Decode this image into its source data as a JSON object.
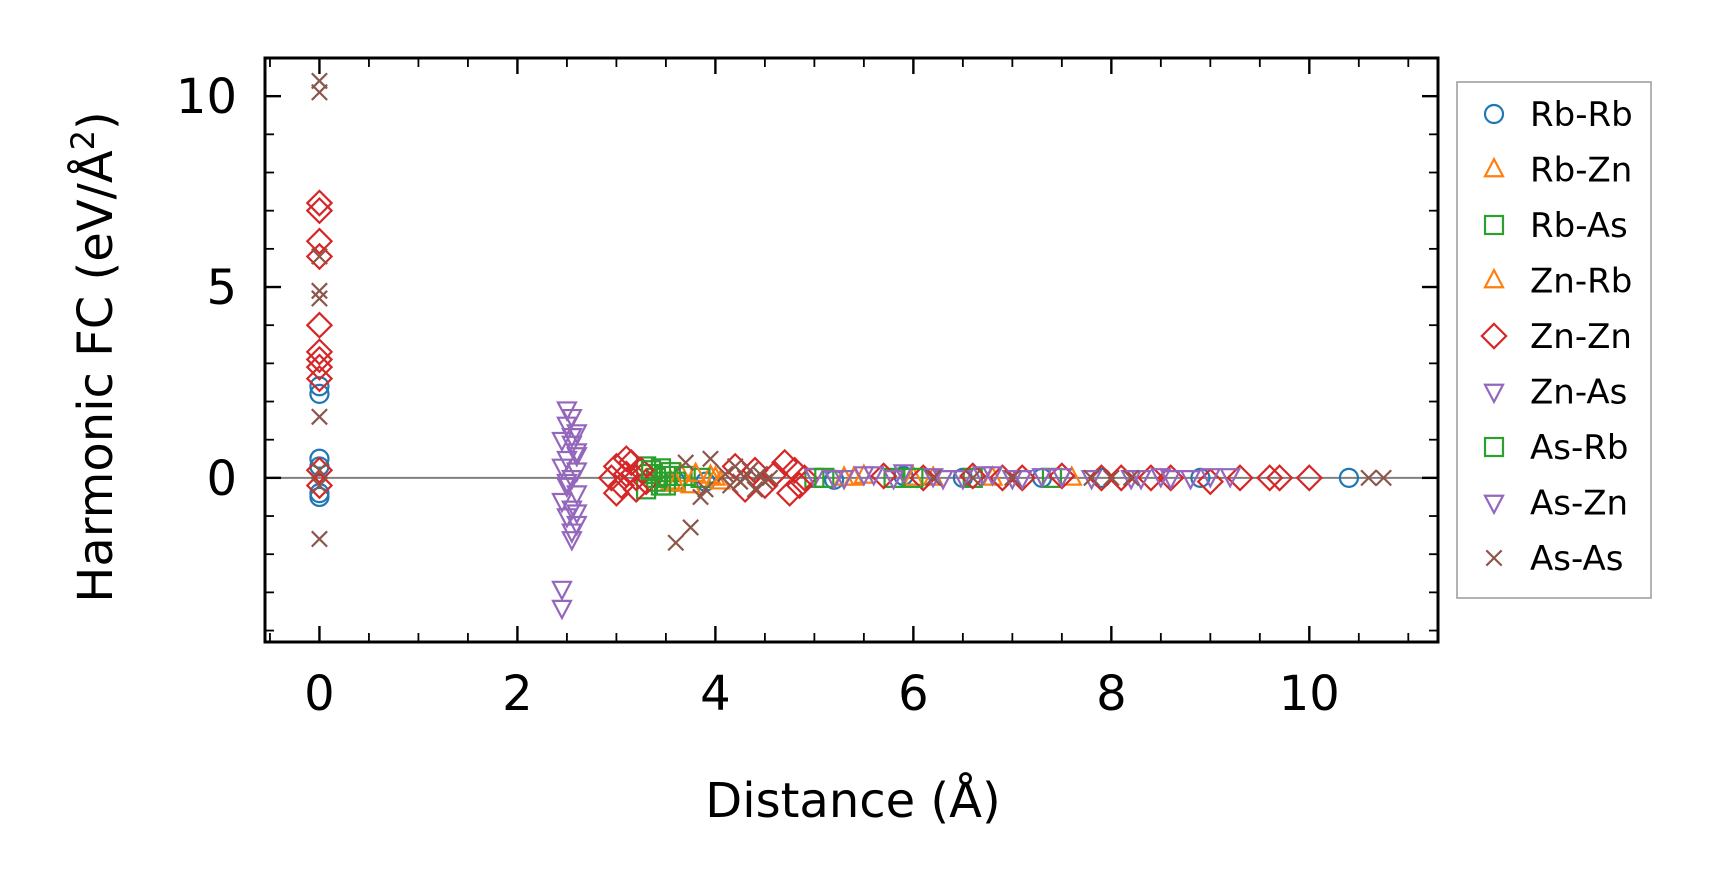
{
  "chart_data": {
    "type": "scatter",
    "xlabel": "Distance (Å)",
    "ylabel": "Harmonic FC (eV/Å²)",
    "ylabel_main": "Harmonic FC (eV/Å",
    "ylabel_sup": "2",
    "ylabel_close": ")",
    "xlim": [
      -0.55,
      11.3
    ],
    "ylim": [
      -4.3,
      11.0
    ],
    "xticks": [
      0,
      2,
      4,
      6,
      8,
      10
    ],
    "yticks": [
      0,
      5,
      10
    ],
    "xtick_labels": [
      "0",
      "2",
      "4",
      "6",
      "8",
      "10"
    ],
    "ytick_labels": [
      "0",
      "5",
      "10"
    ],
    "x_minor_step": 0.5,
    "y_minor_step": 1,
    "zero_line": true,
    "grid": false,
    "legend_position": "right outside",
    "series": [
      {
        "name": "Rb-Rb",
        "marker": "circle",
        "color": "#1f77b4",
        "points": [
          [
            0,
            2.4
          ],
          [
            0,
            2.2
          ],
          [
            0,
            0.5
          ],
          [
            0,
            0.3
          ],
          [
            0,
            -0.4
          ],
          [
            0,
            -0.5
          ],
          [
            3.6,
            -0.1
          ],
          [
            3.9,
            -0.1
          ],
          [
            5.2,
            -0.05
          ],
          [
            5.9,
            0.05
          ],
          [
            6.5,
            0.0
          ],
          [
            7.3,
            0.0
          ],
          [
            7.9,
            0.0
          ],
          [
            8.9,
            0.0
          ],
          [
            10.4,
            0.0
          ]
        ]
      },
      {
        "name": "Rb-Zn",
        "marker": "triangle-up",
        "color": "#ff7f0e",
        "points": [
          [
            3.55,
            -0.1
          ],
          [
            3.65,
            0.1
          ],
          [
            3.75,
            -0.2
          ],
          [
            3.95,
            0.05
          ],
          [
            4.05,
            -0.1
          ],
          [
            5.3,
            0.0
          ],
          [
            5.5,
            0.05
          ],
          [
            6.0,
            0.0
          ],
          [
            6.8,
            0.0
          ],
          [
            7.6,
            0.0
          ]
        ]
      },
      {
        "name": "Rb-As",
        "marker": "square",
        "color": "#2ca02c",
        "points": [
          [
            3.3,
            0.3
          ],
          [
            3.35,
            0.1
          ],
          [
            3.4,
            -0.1
          ],
          [
            3.45,
            0.25
          ],
          [
            3.3,
            -0.3
          ],
          [
            3.5,
            -0.2
          ],
          [
            3.4,
            0.0
          ],
          [
            3.55,
            0.15
          ],
          [
            3.6,
            -0.1
          ],
          [
            3.7,
            0.05
          ],
          [
            3.85,
            0.0
          ],
          [
            5.0,
            0.0
          ],
          [
            5.8,
            0.0
          ],
          [
            6.6,
            0.0
          ],
          [
            7.4,
            0.0
          ]
        ]
      },
      {
        "name": "Zn-Rb",
        "marker": "triangle-up",
        "color": "#ff7f0e",
        "points": [
          [
            3.6,
            -0.15
          ],
          [
            3.8,
            0.1
          ],
          [
            4.0,
            0.0
          ],
          [
            5.4,
            0.0
          ],
          [
            6.2,
            0.0
          ]
        ]
      },
      {
        "name": "Zn-Zn",
        "marker": "diamond",
        "color": "#d62728",
        "points": [
          [
            0,
            7.2
          ],
          [
            0,
            7.0
          ],
          [
            0,
            6.2
          ],
          [
            0,
            5.8
          ],
          [
            0,
            4.0
          ],
          [
            0,
            3.3
          ],
          [
            0,
            3.1
          ],
          [
            0,
            2.9
          ],
          [
            0,
            2.6
          ],
          [
            0,
            0.2
          ],
          [
            0,
            -0.2
          ],
          [
            3.0,
            0.3
          ],
          [
            3.05,
            -0.2
          ],
          [
            3.1,
            0.1
          ],
          [
            3.0,
            -0.4
          ],
          [
            3.15,
            0.4
          ],
          [
            3.2,
            -0.3
          ],
          [
            3.25,
            0.2
          ],
          [
            3.1,
            0.5
          ],
          [
            3.3,
            -0.1
          ],
          [
            2.95,
            0.0
          ],
          [
            3.2,
            0.0
          ],
          [
            4.2,
            0.3
          ],
          [
            4.3,
            -0.3
          ],
          [
            4.4,
            0.2
          ],
          [
            4.5,
            -0.2
          ],
          [
            4.6,
            0.1
          ],
          [
            4.7,
            0.4
          ],
          [
            4.75,
            -0.4
          ],
          [
            4.8,
            0.2
          ],
          [
            4.85,
            -0.2
          ],
          [
            4.9,
            0.0
          ],
          [
            5.7,
            0.05
          ],
          [
            6.1,
            0.0
          ],
          [
            6.6,
            0.05
          ],
          [
            6.9,
            0.0
          ],
          [
            7.1,
            0.0
          ],
          [
            7.5,
            0.05
          ],
          [
            7.9,
            0.0
          ],
          [
            8.1,
            0.0
          ],
          [
            8.4,
            0.0
          ],
          [
            8.6,
            0.0
          ],
          [
            9.0,
            -0.1
          ],
          [
            9.3,
            0.0
          ],
          [
            9.6,
            0.0
          ],
          [
            9.7,
            0.0
          ],
          [
            10.0,
            0.0
          ]
        ]
      },
      {
        "name": "Zn-As",
        "marker": "triangle-down",
        "color": "#9467bd",
        "points": [
          [
            2.5,
            1.8
          ],
          [
            2.55,
            1.6
          ],
          [
            2.5,
            1.4
          ],
          [
            2.6,
            1.2
          ],
          [
            2.45,
            1.0
          ],
          [
            2.55,
            0.9
          ],
          [
            2.6,
            0.7
          ],
          [
            2.5,
            0.5
          ],
          [
            2.45,
            0.3
          ],
          [
            2.6,
            0.2
          ],
          [
            2.55,
            0.0
          ],
          [
            2.5,
            -0.2
          ],
          [
            2.6,
            -0.4
          ],
          [
            2.45,
            -0.6
          ],
          [
            2.55,
            -0.8
          ],
          [
            2.5,
            -1.0
          ],
          [
            2.6,
            -1.2
          ],
          [
            2.55,
            -1.4
          ],
          [
            2.45,
            -2.9
          ],
          [
            2.45,
            -3.4
          ],
          [
            5.0,
            0.05
          ],
          [
            5.3,
            0.0
          ],
          [
            5.6,
            0.1
          ],
          [
            5.8,
            0.0
          ],
          [
            6.2,
            0.05
          ],
          [
            6.5,
            0.0
          ],
          [
            6.8,
            0.1
          ],
          [
            7.0,
            0.0
          ],
          [
            7.3,
            0.05
          ],
          [
            8.2,
            0.0
          ],
          [
            8.6,
            0.0
          ],
          [
            9.0,
            0.05
          ]
        ]
      },
      {
        "name": "As-Rb",
        "marker": "square",
        "color": "#2ca02c",
        "points": [
          [
            3.35,
            0.2
          ],
          [
            3.45,
            -0.2
          ],
          [
            3.5,
            0.05
          ],
          [
            5.1,
            0.0
          ],
          [
            6.0,
            0.0
          ]
        ]
      },
      {
        "name": "As-Zn",
        "marker": "triangle-down",
        "color": "#9467bd",
        "points": [
          [
            2.55,
            1.1
          ],
          [
            2.6,
            0.6
          ],
          [
            2.5,
            -0.1
          ],
          [
            2.6,
            -0.9
          ],
          [
            2.55,
            -1.6
          ],
          [
            5.2,
            0.0
          ],
          [
            5.5,
            0.1
          ],
          [
            5.9,
            0.15
          ],
          [
            6.3,
            0.0
          ],
          [
            6.7,
            0.1
          ],
          [
            7.1,
            0.0
          ],
          [
            7.5,
            0.05
          ],
          [
            7.8,
            0.0
          ],
          [
            8.3,
            0.0
          ],
          [
            8.5,
            0.05
          ],
          [
            8.8,
            0.0
          ],
          [
            9.2,
            0.05
          ]
        ]
      },
      {
        "name": "As-As",
        "marker": "x",
        "color": "#8c564b",
        "points": [
          [
            0,
            10.4
          ],
          [
            0,
            10.1
          ],
          [
            0,
            5.8
          ],
          [
            0,
            4.9
          ],
          [
            0,
            4.7
          ],
          [
            0,
            1.6
          ],
          [
            0,
            0.2
          ],
          [
            0,
            -0.2
          ],
          [
            0,
            -1.6
          ],
          [
            3.6,
            -1.7
          ],
          [
            3.75,
            -1.3
          ],
          [
            3.85,
            -0.5
          ],
          [
            3.9,
            -0.3
          ],
          [
            3.95,
            0.5
          ],
          [
            3.7,
            0.4
          ],
          [
            4.1,
            0.1
          ],
          [
            4.15,
            -0.2
          ],
          [
            4.2,
            0.3
          ],
          [
            4.25,
            -0.1
          ],
          [
            4.3,
            0.0
          ],
          [
            4.35,
            0.2
          ],
          [
            4.4,
            -0.3
          ],
          [
            4.45,
            0.1
          ],
          [
            4.5,
            -0.1
          ],
          [
            4.55,
            0.0
          ],
          [
            6.2,
            0.0
          ],
          [
            6.6,
            0.0
          ],
          [
            7.0,
            0.0
          ],
          [
            7.8,
            0.0
          ],
          [
            8.0,
            0.0
          ],
          [
            8.2,
            0.0
          ],
          [
            10.6,
            0.0
          ],
          [
            10.75,
            0.0
          ]
        ]
      }
    ]
  }
}
